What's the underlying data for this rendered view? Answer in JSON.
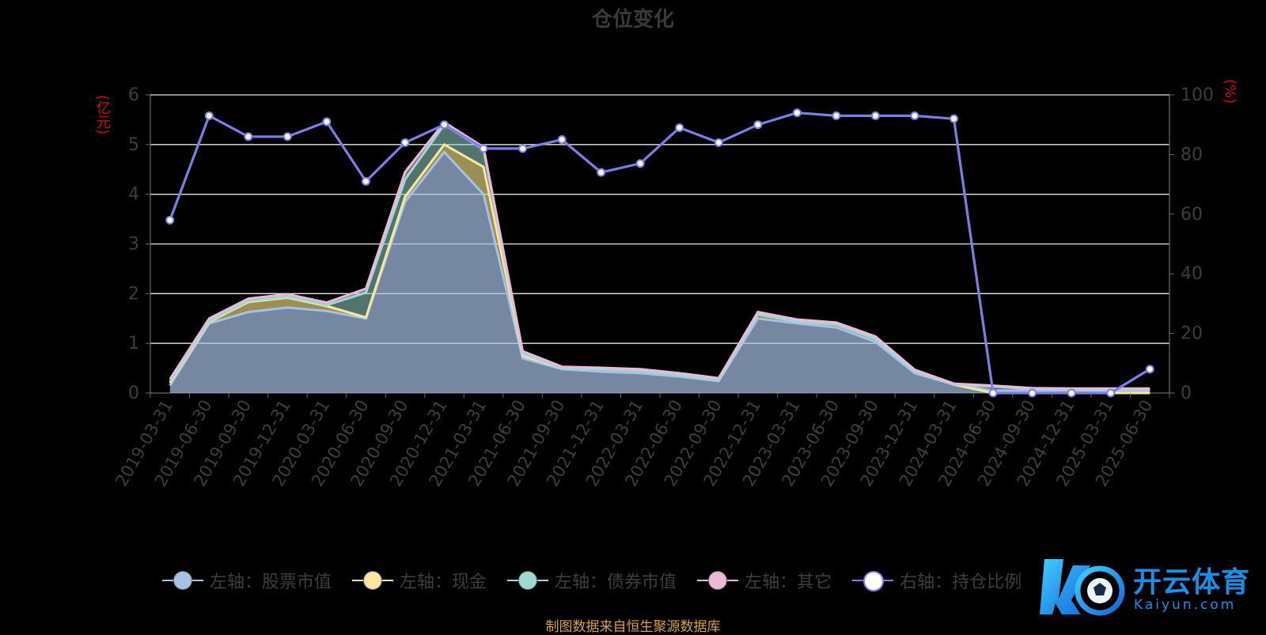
{
  "chart_data": {
    "type": "area",
    "title": "仓位变化",
    "left_unit": "(亿元)",
    "right_unit": "(%)",
    "x": [
      "2019-03-31",
      "2019-06-30",
      "2019-09-30",
      "2019-12-31",
      "2020-03-31",
      "2020-06-30",
      "2020-09-30",
      "2020-12-31",
      "2021-03-31",
      "2021-06-30",
      "2021-09-30",
      "2021-12-31",
      "2022-03-31",
      "2022-06-30",
      "2022-09-30",
      "2022-12-31",
      "2023-03-31",
      "2023-06-30",
      "2023-09-30",
      "2023-12-31",
      "2024-03-31",
      "2024-06-30",
      "2024-09-30",
      "2024-12-31",
      "2025-03-31",
      "2025-06-30"
    ],
    "y_left": {
      "min": 0,
      "max": 6,
      "ticks": [
        0,
        1,
        2,
        3,
        4,
        5,
        6
      ]
    },
    "y_right": {
      "min": 0,
      "max": 100,
      "ticks": [
        0,
        20,
        40,
        60,
        80,
        100
      ]
    },
    "grid": true,
    "legend_position": "bottom",
    "series": [
      {
        "name": "左轴：股票市值",
        "axis": "left",
        "color": "#a6c0e6",
        "fill": "rgba(166,192,230,0.70)",
        "values": [
          0.15,
          1.4,
          1.63,
          1.72,
          1.65,
          1.5,
          3.85,
          4.85,
          4.0,
          0.7,
          0.48,
          0.43,
          0.4,
          0.33,
          0.24,
          1.5,
          1.4,
          1.32,
          1.03,
          0.4,
          0.17,
          0.05,
          0.05,
          0.05,
          0.05,
          0.05
        ]
      },
      {
        "name": "左轴：现金",
        "axis": "left",
        "color": "#f5e9a0",
        "fill": "rgba(240,220,130,0.65)",
        "values": [
          0.05,
          0.03,
          0.2,
          0.2,
          0.1,
          0.02,
          0.1,
          0.15,
          0.55,
          0.05,
          0.02,
          0.05,
          0.05,
          0.04,
          0.02,
          0.08,
          0.04,
          0.06,
          0.06,
          0.04,
          0.0,
          -0.05,
          -0.05,
          -0.05,
          -0.05,
          -0.05
        ]
      },
      {
        "name": "左轴：债券市值",
        "axis": "left",
        "color": "#9fd8d4",
        "fill": "rgba(150,210,200,0.55)",
        "values": [
          0.03,
          0.02,
          0.02,
          0.02,
          0.02,
          0.5,
          0.35,
          0.4,
          0.35,
          0.04,
          0.0,
          0.0,
          0.0,
          0.0,
          0.0,
          0.0,
          0.0,
          0.0,
          0.0,
          0.0,
          0.0,
          0.13,
          0.08,
          0.07,
          0.07,
          0.07
        ]
      },
      {
        "name": "左轴：其它",
        "axis": "left",
        "color": "#eab8d8",
        "fill": "rgba(234,184,216,0.60)",
        "values": [
          0.05,
          0.05,
          0.05,
          0.05,
          0.05,
          0.08,
          0.15,
          0.05,
          0.05,
          0.05,
          0.03,
          0.03,
          0.03,
          0.03,
          0.04,
          0.05,
          0.04,
          0.04,
          0.05,
          0.03,
          0.02,
          0.02,
          0.02,
          0.02,
          0.02,
          0.02
        ]
      },
      {
        "name": "右轴：持仓比例",
        "axis": "right",
        "color": "#7b7ee6",
        "values": [
          58,
          93,
          86,
          86,
          91,
          71,
          84,
          90,
          82,
          82,
          85,
          74,
          77,
          89,
          84,
          90,
          94,
          93,
          93,
          93,
          92,
          0,
          0,
          0,
          0,
          8
        ]
      }
    ]
  },
  "source_note": "制图数据来自恒生聚源数据库",
  "watermark": {
    "name": "开云体育",
    "url_text": "Kaiyun.com"
  }
}
